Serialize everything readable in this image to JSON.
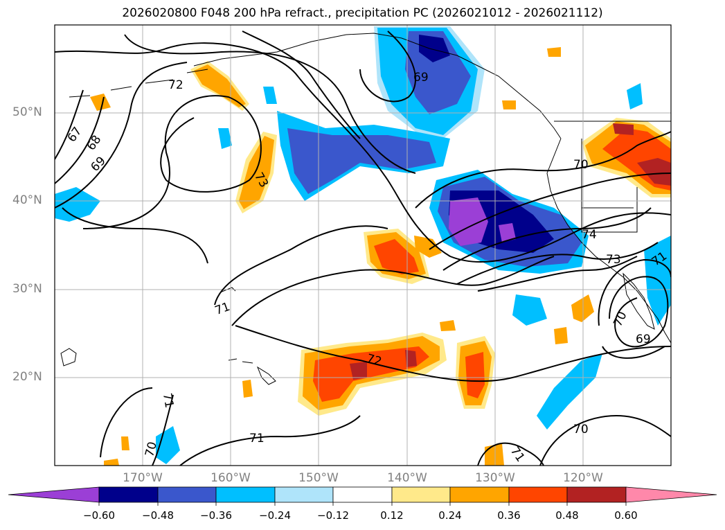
{
  "title": "2026020800 F048 200 hPa refract., precipitation PC (2026021012 - 2026021112)",
  "lat_labels": [
    "50°N",
    "40°N",
    "30°N",
    "20°N"
  ],
  "lon_labels": [
    "170°W",
    "160°W",
    "150°W",
    "140°W",
    "130°W",
    "120°W"
  ],
  "contour_labels": [
    "67",
    "68",
    "69",
    "72",
    "73",
    "69",
    "70",
    "74",
    "73",
    "71",
    "72",
    "71",
    "71",
    "70",
    "70",
    "69",
    "71",
    "70",
    "71"
  ],
  "colorbar": {
    "ticks": [
      "−0.60",
      "−0.48",
      "−0.36",
      "−0.24",
      "−0.12",
      "0.12",
      "0.24",
      "0.36",
      "0.48",
      "0.60"
    ],
    "colors": [
      "#9b3fd6",
      "#00008b",
      "#3a57cc",
      "#00bfff",
      "#afe4fa",
      "#ffffff",
      "#ffe98a",
      "#ffa500",
      "#ff4500",
      "#b22222",
      "#ff88aa"
    ]
  },
  "palette": {
    "purple": "#9b3fd6",
    "navy": "#00008b",
    "blue": "#3a57cc",
    "sky": "#00bfff",
    "lightsky": "#afe4fa",
    "yellow": "#ffe98a",
    "orange": "#ffa500",
    "redorange": "#ff4500",
    "firebrick": "#b22222"
  }
}
